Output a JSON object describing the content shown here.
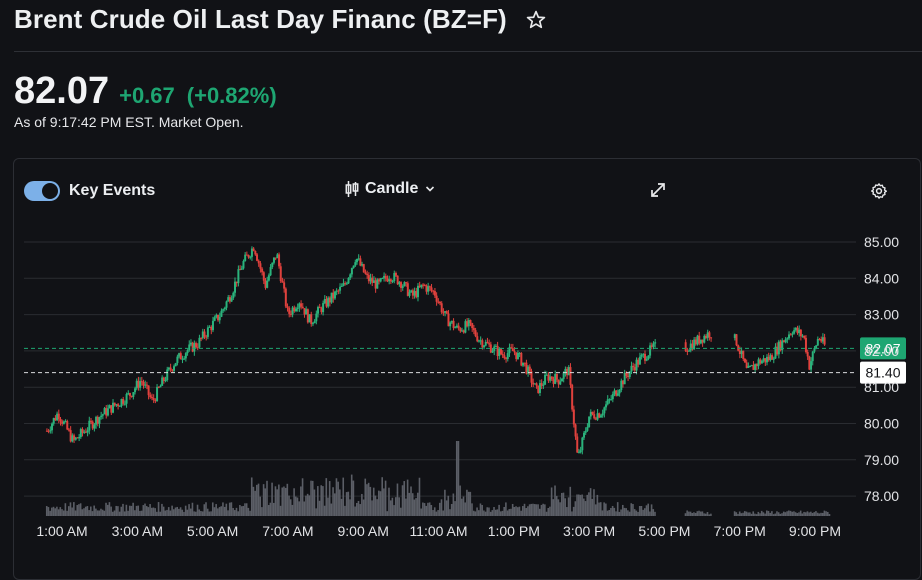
{
  "header": {
    "title": "Brent Crude Oil Last Day Financ (BZ=F)",
    "star_icon": "star-outline-icon"
  },
  "quote": {
    "price": "82.07",
    "change": "+0.67",
    "change_percent": "(+0.82%)",
    "as_of": "As of 9:17:42 PM EST. Market Open.",
    "up_color": "#1ea672"
  },
  "toolbar": {
    "key_events_label": "Key Events",
    "key_events_on": true,
    "chart_type_label": "Candle",
    "candle_icon": "candlestick-icon",
    "chevron_icon": "chevron-down-icon",
    "expand_icon": "expand-icon",
    "settings_icon": "gear-icon"
  },
  "chart_data": {
    "type": "candlestick",
    "y_ticks": [
      "85.00",
      "84.00",
      "83.00",
      "82.00",
      "81.00",
      "80.00",
      "79.00",
      "78.00"
    ],
    "x_ticks": [
      "1:00 AM",
      "3:00 AM",
      "5:00 AM",
      "7:00 AM",
      "9:00 AM",
      "11:00 AM",
      "1:00 PM",
      "3:00 PM",
      "5:00 PM",
      "7:00 PM",
      "9:00 PM"
    ],
    "ylim": [
      77.6,
      85.2
    ],
    "current_price": {
      "value": 82.07,
      "label": "82.07",
      "color": "#1ea672"
    },
    "previous_close": {
      "value": 81.4,
      "label": "81.40"
    },
    "grid": true,
    "series": [
      {
        "values": [
          {
            "t": 0.6,
            "v": 79.8
          },
          {
            "t": 0.9,
            "v": 80.3
          },
          {
            "t": 1.3,
            "v": 79.5
          },
          {
            "t": 1.7,
            "v": 79.9
          },
          {
            "t": 2.0,
            "v": 80.2
          },
          {
            "t": 2.4,
            "v": 80.5
          },
          {
            "t": 2.8,
            "v": 80.8
          },
          {
            "t": 3.1,
            "v": 81.2
          },
          {
            "t": 3.4,
            "v": 80.6
          },
          {
            "t": 3.7,
            "v": 81.2
          },
          {
            "t": 4.0,
            "v": 81.7
          },
          {
            "t": 4.3,
            "v": 82.0
          },
          {
            "t": 4.6,
            "v": 82.2
          },
          {
            "t": 4.9,
            "v": 82.6
          },
          {
            "t": 5.2,
            "v": 83.0
          },
          {
            "t": 5.5,
            "v": 83.6
          },
          {
            "t": 5.8,
            "v": 84.4
          },
          {
            "t": 6.1,
            "v": 84.9
          },
          {
            "t": 6.4,
            "v": 83.8
          },
          {
            "t": 6.7,
            "v": 84.7
          },
          {
            "t": 7.0,
            "v": 83.0
          },
          {
            "t": 7.3,
            "v": 83.4
          },
          {
            "t": 7.6,
            "v": 82.8
          },
          {
            "t": 7.9,
            "v": 83.2
          },
          {
            "t": 8.2,
            "v": 83.5
          },
          {
            "t": 8.5,
            "v": 83.8
          },
          {
            "t": 8.8,
            "v": 84.6
          },
          {
            "t": 9.1,
            "v": 84.0
          },
          {
            "t": 9.4,
            "v": 83.8
          },
          {
            "t": 9.7,
            "v": 84.1
          },
          {
            "t": 10.0,
            "v": 83.9
          },
          {
            "t": 10.3,
            "v": 83.5
          },
          {
            "t": 10.6,
            "v": 83.8
          },
          {
            "t": 10.9,
            "v": 83.6
          },
          {
            "t": 11.2,
            "v": 82.9
          },
          {
            "t": 11.5,
            "v": 82.6
          },
          {
            "t": 11.8,
            "v": 82.7
          },
          {
            "t": 12.1,
            "v": 82.3
          },
          {
            "t": 12.4,
            "v": 82.1
          },
          {
            "t": 12.7,
            "v": 81.9
          },
          {
            "t": 13.0,
            "v": 82.0
          },
          {
            "t": 13.3,
            "v": 81.6
          },
          {
            "t": 13.6,
            "v": 80.9
          },
          {
            "t": 13.9,
            "v": 81.3
          },
          {
            "t": 14.2,
            "v": 81.2
          },
          {
            "t": 14.45,
            "v": 81.5
          },
          {
            "t": 14.7,
            "v": 79.0
          },
          {
            "t": 15.0,
            "v": 80.2
          },
          {
            "t": 15.3,
            "v": 80.3
          },
          {
            "t": 15.6,
            "v": 80.7
          },
          {
            "t": 15.9,
            "v": 81.2
          },
          {
            "t": 16.2,
            "v": 81.6
          },
          {
            "t": 16.5,
            "v": 81.9
          },
          {
            "t": 16.75,
            "v": 82.1
          },
          {
            "t": 17.6,
            "v": 82.1
          },
          {
            "t": 17.9,
            "v": 82.3
          },
          {
            "t": 18.2,
            "v": 82.5
          },
          {
            "t": 18.9,
            "v": 82.3
          },
          {
            "t": 19.2,
            "v": 81.4
          },
          {
            "t": 19.5,
            "v": 81.7
          },
          {
            "t": 19.8,
            "v": 81.8
          },
          {
            "t": 20.1,
            "v": 82.2
          },
          {
            "t": 20.4,
            "v": 82.6
          },
          {
            "t": 20.7,
            "v": 82.4
          },
          {
            "t": 20.85,
            "v": 81.6
          },
          {
            "t": 21.1,
            "v": 82.4
          },
          {
            "t": 21.3,
            "v": 82.07
          }
        ]
      }
    ]
  }
}
